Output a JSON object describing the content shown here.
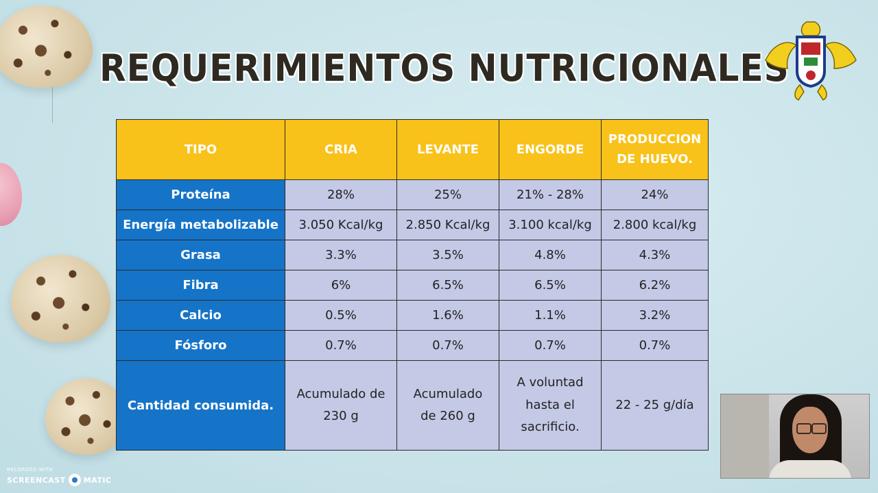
{
  "slide": {
    "title": "REQUERIMIENTOS NUTRICIONALES"
  },
  "table": {
    "headers": [
      "TIPO",
      "CRIA",
      "LEVANTE",
      "ENGORDE",
      "PRODUCCION\nDE HUEVO."
    ],
    "rows": [
      {
        "label": "Proteína",
        "values": [
          "28%",
          "25%",
          "21% - 28%",
          "24%"
        ]
      },
      {
        "label": "Energía metabolizable",
        "values": [
          "3.050 Kcal/kg",
          "2.850 Kcal/kg",
          "3.100 kcal/kg",
          "2.800 kcal/kg"
        ]
      },
      {
        "label": "Grasa",
        "values": [
          "3.3%",
          "3.5%",
          "4.8%",
          "4.3%"
        ]
      },
      {
        "label": "Fibra",
        "values": [
          "6%",
          "6.5%",
          "6.5%",
          "6.2%"
        ]
      },
      {
        "label": "Calcio",
        "values": [
          "0.5%",
          "1.6%",
          "1.1%",
          "3.2%"
        ]
      },
      {
        "label": "Fósforo",
        "values": [
          "0.7%",
          "0.7%",
          "0.7%",
          "0.7%"
        ]
      },
      {
        "label": "Cantidad consumida.",
        "values": [
          "Acumulado de\n230 g",
          "Acumulado\nde 260 g",
          "A voluntad\nhasta el\nsacrificio.",
          "22 - 25 g/día"
        ]
      }
    ],
    "colors": {
      "header_bg": "#f8c21a",
      "rowhead_bg": "#1574c8",
      "cell_bg": "#c4c9e6"
    }
  },
  "watermark": {
    "recorded_with": "RECORDED WITH",
    "brand_left": "SCREENCAST",
    "brand_right": "MATIC"
  },
  "icons": {
    "logo": "griffin-crest-icon",
    "webcam": "presenter-webcam"
  }
}
